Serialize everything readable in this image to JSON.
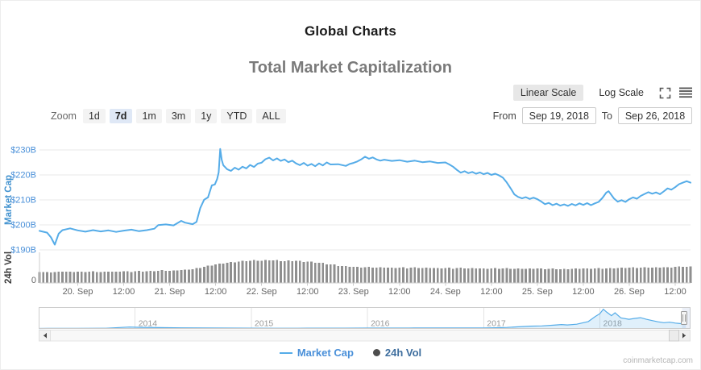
{
  "header": {
    "title": "Global Charts",
    "subtitle": "Total Market Capitalization"
  },
  "scale_toggle": {
    "linear": "Linear Scale",
    "log": "Log Scale",
    "selected": "Linear Scale"
  },
  "zoom_controls": {
    "label": "Zoom",
    "options": [
      "1d",
      "7d",
      "1m",
      "3m",
      "1y",
      "YTD",
      "ALL"
    ],
    "selected": "7d"
  },
  "date_range": {
    "from_label": "From",
    "from_value": "Sep 19, 2018",
    "to_label": "To",
    "to_value": "Sep 26, 2018"
  },
  "legend": [
    {
      "label": "Market Cap",
      "marker": "line",
      "marker_color": "#55ACE8",
      "text_color": "#4A90D9"
    },
    {
      "label": "24h Vol",
      "marker": "circle",
      "marker_color": "#4D4D4D",
      "text_color": "#3E6E9E"
    }
  ],
  "credits": "coinmarketcap.com",
  "colors": {
    "line_blue": "#55ACE8",
    "axis_label_blue": "#4A90D9",
    "axis_title_blue": "#4292CF",
    "volume_gray": "#8F8F8F",
    "grid_gray": "#E8E8E8",
    "tick_text_gray": "#666666",
    "nav_fill": "rgba(85,172,232,0.18)"
  },
  "chart_data": [
    {
      "type": "line",
      "name": "Market Cap",
      "ylabel": "Market Cap",
      "ylim": [
        188,
        232
      ],
      "yticks": [
        {
          "value": 230,
          "label": "$230B"
        },
        {
          "value": 220,
          "label": "$220B"
        },
        {
          "value": 210,
          "label": "$210B"
        },
        {
          "value": 200,
          "label": "$200B"
        },
        {
          "value": 190,
          "label": "$190B"
        }
      ],
      "x_unit": "hours",
      "xticks": [
        {
          "x": 10,
          "label": "20. Sep"
        },
        {
          "x": 22,
          "label": "12:00"
        },
        {
          "x": 34,
          "label": "21. Sep"
        },
        {
          "x": 46,
          "label": "12:00"
        },
        {
          "x": 58,
          "label": "22. Sep"
        },
        {
          "x": 70,
          "label": "12:00"
        },
        {
          "x": 82,
          "label": "23. Sep"
        },
        {
          "x": 94,
          "label": "12:00"
        },
        {
          "x": 106,
          "label": "24. Sep"
        },
        {
          "x": 118,
          "label": "12:00"
        },
        {
          "x": 130,
          "label": "25. Sep"
        },
        {
          "x": 142,
          "label": "12:00"
        },
        {
          "x": 154,
          "label": "26. Sep"
        },
        {
          "x": 166,
          "label": "12:00"
        }
      ],
      "points": [
        [
          0,
          197.6
        ],
        [
          2,
          196.9
        ],
        [
          3,
          195.0
        ],
        [
          4,
          192.1
        ],
        [
          5,
          196.5
        ],
        [
          6,
          197.9
        ],
        [
          8,
          198.6
        ],
        [
          10,
          197.8
        ],
        [
          12,
          197.3
        ],
        [
          14,
          197.9
        ],
        [
          16,
          197.4
        ],
        [
          18,
          197.8
        ],
        [
          20,
          197.2
        ],
        [
          22,
          197.7
        ],
        [
          24,
          198.1
        ],
        [
          26,
          197.5
        ],
        [
          28,
          197.9
        ],
        [
          30,
          198.5
        ],
        [
          31,
          199.9
        ],
        [
          33,
          200.2
        ],
        [
          35,
          199.8
        ],
        [
          37,
          201.6
        ],
        [
          38,
          200.9
        ],
        [
          40,
          200.3
        ],
        [
          41,
          201.2
        ],
        [
          42,
          206.8
        ],
        [
          43,
          210.1
        ],
        [
          44,
          211.0
        ],
        [
          45,
          215.8
        ],
        [
          45.8,
          216.2
        ],
        [
          46.4,
          218.4
        ],
        [
          46.8,
          221.0
        ],
        [
          47.2,
          230.4
        ],
        [
          47.6,
          226.0
        ],
        [
          48,
          223.9
        ],
        [
          49,
          222.3
        ],
        [
          50,
          221.6
        ],
        [
          51,
          222.9
        ],
        [
          52,
          222.1
        ],
        [
          53,
          223.3
        ],
        [
          54,
          222.6
        ],
        [
          55,
          224.0
        ],
        [
          56,
          223.2
        ],
        [
          57,
          224.5
        ],
        [
          58,
          224.9
        ],
        [
          59,
          226.3
        ],
        [
          60,
          226.9
        ],
        [
          61,
          225.8
        ],
        [
          62,
          226.6
        ],
        [
          63,
          225.6
        ],
        [
          64,
          226.2
        ],
        [
          65,
          225.1
        ],
        [
          66,
          225.7
        ],
        [
          67,
          224.6
        ],
        [
          68,
          223.9
        ],
        [
          69,
          224.8
        ],
        [
          70,
          223.7
        ],
        [
          71,
          224.4
        ],
        [
          72,
          223.5
        ],
        [
          73,
          224.6
        ],
        [
          74,
          223.8
        ],
        [
          75,
          225.0
        ],
        [
          76,
          224.2
        ],
        [
          78,
          224.3
        ],
        [
          80,
          223.6
        ],
        [
          81,
          224.4
        ],
        [
          82,
          224.8
        ],
        [
          83,
          225.4
        ],
        [
          84,
          226.2
        ],
        [
          85,
          227.3
        ],
        [
          86,
          226.5
        ],
        [
          87,
          227.0
        ],
        [
          88,
          226.2
        ],
        [
          89,
          225.7
        ],
        [
          90,
          226.1
        ],
        [
          92,
          225.6
        ],
        [
          94,
          225.9
        ],
        [
          96,
          225.3
        ],
        [
          98,
          225.7
        ],
        [
          100,
          225.1
        ],
        [
          102,
          225.4
        ],
        [
          104,
          224.8
        ],
        [
          106,
          225.0
        ],
        [
          107,
          224.2
        ],
        [
          108,
          223.3
        ],
        [
          109,
          222.0
        ],
        [
          110,
          220.9
        ],
        [
          111,
          221.5
        ],
        [
          112,
          220.7
        ],
        [
          113,
          221.2
        ],
        [
          114,
          220.5
        ],
        [
          115,
          221.0
        ],
        [
          116,
          220.3
        ],
        [
          117,
          220.8
        ],
        [
          118,
          220.0
        ],
        [
          119,
          220.5
        ],
        [
          120,
          219.8
        ],
        [
          121,
          218.9
        ],
        [
          122,
          217.0
        ],
        [
          123,
          214.7
        ],
        [
          124,
          212.2
        ],
        [
          125,
          211.2
        ],
        [
          126,
          210.6
        ],
        [
          127,
          211.1
        ],
        [
          128,
          210.4
        ],
        [
          129,
          210.9
        ],
        [
          130,
          210.3
        ],
        [
          131,
          209.4
        ],
        [
          132,
          208.3
        ],
        [
          133,
          208.8
        ],
        [
          134,
          207.9
        ],
        [
          135,
          208.5
        ],
        [
          136,
          207.7
        ],
        [
          137,
          208.2
        ],
        [
          138,
          207.6
        ],
        [
          139,
          208.4
        ],
        [
          140,
          207.8
        ],
        [
          141,
          208.6
        ],
        [
          142,
          208.0
        ],
        [
          143,
          208.7
        ],
        [
          144,
          207.9
        ],
        [
          145,
          208.6
        ],
        [
          146,
          209.2
        ],
        [
          147,
          210.8
        ],
        [
          148,
          212.9
        ],
        [
          148.6,
          213.5
        ],
        [
          149.2,
          212.3
        ],
        [
          150,
          210.6
        ],
        [
          151,
          209.3
        ],
        [
          152,
          209.9
        ],
        [
          153,
          209.2
        ],
        [
          154,
          210.3
        ],
        [
          155,
          211.0
        ],
        [
          156,
          210.5
        ],
        [
          157,
          211.6
        ],
        [
          158,
          212.4
        ],
        [
          159,
          213.1
        ],
        [
          160,
          212.5
        ],
        [
          161,
          213.0
        ],
        [
          162,
          212.3
        ],
        [
          163,
          213.4
        ],
        [
          164,
          214.6
        ],
        [
          165,
          214.1
        ],
        [
          166,
          215.1
        ],
        [
          167,
          216.3
        ],
        [
          168,
          216.9
        ],
        [
          169,
          217.5
        ],
        [
          170,
          216.9
        ]
      ]
    },
    {
      "type": "bar",
      "name": "24h Vol",
      "ylabel": "24h Vol",
      "zero_label": "0",
      "x_start_hour": 0,
      "x_step_hours": 2,
      "ymax": 30,
      "values": [
        11.0,
        10.6,
        10.9,
        11.3,
        10.8,
        11.2,
        11.0,
        11.4,
        10.9,
        11.3,
        11.1,
        11.6,
        11.2,
        11.8,
        11.4,
        12.0,
        12.4,
        12.1,
        12.6,
        13.0,
        13.6,
        15.2,
        16.8,
        18.4,
        19.6,
        20.6,
        21.4,
        22.0,
        22.6,
        22.2,
        22.8,
        22.4,
        21.9,
        22.3,
        21.8,
        21.2,
        20.5,
        19.6,
        18.5,
        17.4,
        16.6,
        16.0,
        15.5,
        15.8,
        15.2,
        15.6,
        15.1,
        15.4,
        14.9,
        15.2,
        14.8,
        15.1,
        14.6,
        15.0,
        14.5,
        14.8,
        14.4,
        14.7,
        14.3,
        14.6,
        14.2,
        14.5,
        14.1,
        14.4,
        14.0,
        14.3,
        13.9,
        14.2,
        13.8,
        14.1,
        14.0,
        14.4,
        14.2,
        14.6,
        14.4,
        14.8,
        15.0,
        15.3,
        15.1,
        15.5,
        15.3,
        15.7,
        15.5,
        15.9,
        16.2,
        16.0
      ]
    },
    {
      "type": "area",
      "name": "Market Cap history (navigator)",
      "xlim": [
        2013.17,
        2018.78
      ],
      "ymax": 870,
      "year_ticks": [
        2014,
        2015,
        2016,
        2017,
        2018
      ],
      "points": [
        [
          2013.17,
          1.5
        ],
        [
          2013.25,
          2
        ],
        [
          2013.5,
          5
        ],
        [
          2013.75,
          12
        ],
        [
          2013.95,
          62
        ],
        [
          2014.05,
          48
        ],
        [
          2014.2,
          40
        ],
        [
          2014.4,
          28
        ],
        [
          2014.6,
          22
        ],
        [
          2014.8,
          18
        ],
        [
          2015.0,
          14
        ],
        [
          2015.2,
          12
        ],
        [
          2015.4,
          11
        ],
        [
          2015.6,
          13
        ],
        [
          2015.8,
          14
        ],
        [
          2016.0,
          16
        ],
        [
          2016.2,
          18
        ],
        [
          2016.4,
          21
        ],
        [
          2016.6,
          24
        ],
        [
          2016.8,
          23
        ],
        [
          2017.0,
          26
        ],
        [
          2017.1,
          31
        ],
        [
          2017.2,
          46
        ],
        [
          2017.3,
          72
        ],
        [
          2017.4,
          100
        ],
        [
          2017.5,
          112
        ],
        [
          2017.6,
          142
        ],
        [
          2017.67,
          172
        ],
        [
          2017.72,
          152
        ],
        [
          2017.8,
          185
        ],
        [
          2017.9,
          300
        ],
        [
          2017.96,
          520
        ],
        [
          2018.0,
          640
        ],
        [
          2018.03,
          830
        ],
        [
          2018.06,
          700
        ],
        [
          2018.1,
          555
        ],
        [
          2018.13,
          680
        ],
        [
          2018.18,
          460
        ],
        [
          2018.25,
          395
        ],
        [
          2018.3,
          435
        ],
        [
          2018.35,
          468
        ],
        [
          2018.4,
          398
        ],
        [
          2018.45,
          342
        ],
        [
          2018.5,
          288
        ],
        [
          2018.55,
          252
        ],
        [
          2018.6,
          272
        ],
        [
          2018.65,
          232
        ],
        [
          2018.7,
          208
        ],
        [
          2018.74,
          217
        ]
      ]
    }
  ]
}
